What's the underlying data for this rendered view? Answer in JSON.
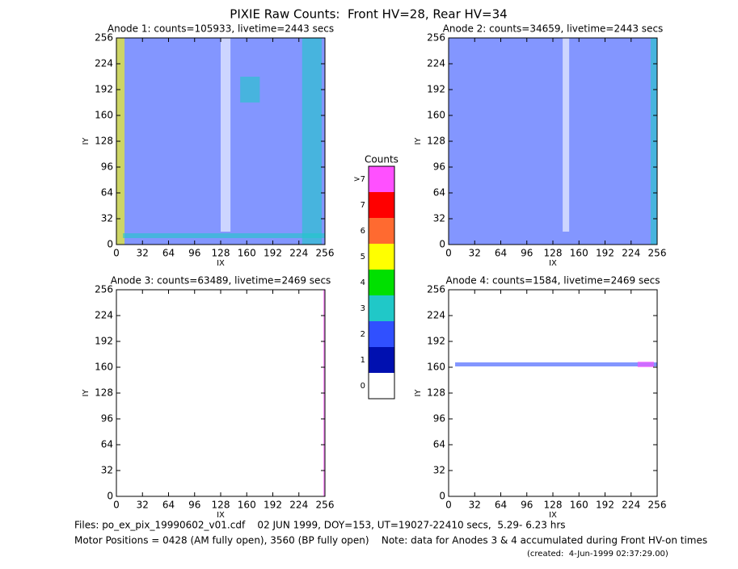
{
  "title": "PIXIE Raw Counts:  Front HV=28, Rear HV=34",
  "chart_data": [
    {
      "type": "heatmap",
      "title": "Anode 1: counts=105933, livetime=2443 secs",
      "xlabel": "IX",
      "ylabel": "IY",
      "xlim": [
        0,
        256
      ],
      "ylim": [
        0,
        256
      ],
      "xticks": [
        0,
        32,
        64,
        96,
        128,
        160,
        192,
        224,
        256
      ],
      "yticks": [
        0,
        32,
        64,
        96,
        128,
        160,
        192,
        224,
        256
      ],
      "regions": [
        {
          "x": [
            0,
            256
          ],
          "y": [
            0,
            256
          ],
          "level": 2
        },
        {
          "x": [
            0,
            10
          ],
          "y": [
            0,
            256
          ],
          "level": 5
        },
        {
          "x": [
            228,
            252
          ],
          "y": [
            0,
            256
          ],
          "level": 3
        },
        {
          "x": [
            152,
            176
          ],
          "y": [
            176,
            208
          ],
          "level": 3
        },
        {
          "x": [
            8,
            256
          ],
          "y": [
            8,
            14
          ],
          "level": 3
        },
        {
          "x": [
            128,
            140
          ],
          "y": [
            16,
            256
          ],
          "level": 0
        }
      ]
    },
    {
      "type": "heatmap",
      "title": "Anode 2: counts=34659, livetime=2443 secs",
      "xlabel": "IX",
      "ylabel": "IY",
      "xlim": [
        0,
        256
      ],
      "ylim": [
        0,
        256
      ],
      "xticks": [
        0,
        32,
        64,
        96,
        128,
        160,
        192,
        224,
        256
      ],
      "yticks": [
        0,
        32,
        64,
        96,
        128,
        160,
        192,
        224,
        256
      ],
      "regions": [
        {
          "x": [
            0,
            256
          ],
          "y": [
            0,
            256
          ],
          "level": 2
        },
        {
          "x": [
            140,
            148
          ],
          "y": [
            16,
            256
          ],
          "level": 0
        },
        {
          "x": [
            248,
            256
          ],
          "y": [
            0,
            256
          ],
          "level": 3
        }
      ]
    },
    {
      "type": "heatmap",
      "title": "Anode 3: counts=63489, livetime=2469 secs",
      "xlabel": "IX",
      "ylabel": "IY",
      "xlim": [
        0,
        256
      ],
      "ylim": [
        0,
        256
      ],
      "xticks": [
        0,
        32,
        64,
        96,
        128,
        160,
        192,
        224,
        256
      ],
      "yticks": [
        0,
        32,
        64,
        96,
        128,
        160,
        192,
        224,
        256
      ],
      "regions": [
        {
          "x": [
            254,
            256
          ],
          "y": [
            0,
            256
          ],
          "level": 8
        }
      ]
    },
    {
      "type": "heatmap",
      "title": "Anode 4: counts=1584, livetime=2469 secs",
      "xlabel": "IX",
      "ylabel": "IY",
      "xlim": [
        0,
        256
      ],
      "ylim": [
        0,
        256
      ],
      "xticks": [
        0,
        32,
        64,
        96,
        128,
        160,
        192,
        224,
        256
      ],
      "yticks": [
        0,
        32,
        64,
        96,
        128,
        160,
        192,
        224,
        256
      ],
      "regions": [
        {
          "x": [
            8,
            256
          ],
          "y": [
            161,
            166
          ],
          "level": 2
        },
        {
          "x": [
            232,
            252
          ],
          "y": [
            160,
            167
          ],
          "level": 8
        }
      ]
    }
  ],
  "colorbar": {
    "title": "Counts",
    "levels": [
      0,
      1,
      2,
      3,
      4,
      5,
      6,
      7,
      {
        "value": 8,
        "label": ">7"
      }
    ],
    "colors": [
      "#ffffff",
      "#0010b0",
      "#3050ff",
      "#20c8c8",
      "#00e000",
      "#ffff00",
      "#ff6a30",
      "#ff0000",
      "#ff50ff"
    ]
  },
  "footer": [
    "Files: po_ex_pix_19990602_v01.cdf    02 JUN 1999, DOY=153, UT=19027-22410 secs,  5.29- 6.23 hrs",
    "Motor Positions = 0428 (AM fully open), 3560 (BP fully open)    Note: data for Anodes 3 & 4 accumulated during Front HV-on times",
    "(created:  4-Jun-1999 02:37:29.00)"
  ]
}
